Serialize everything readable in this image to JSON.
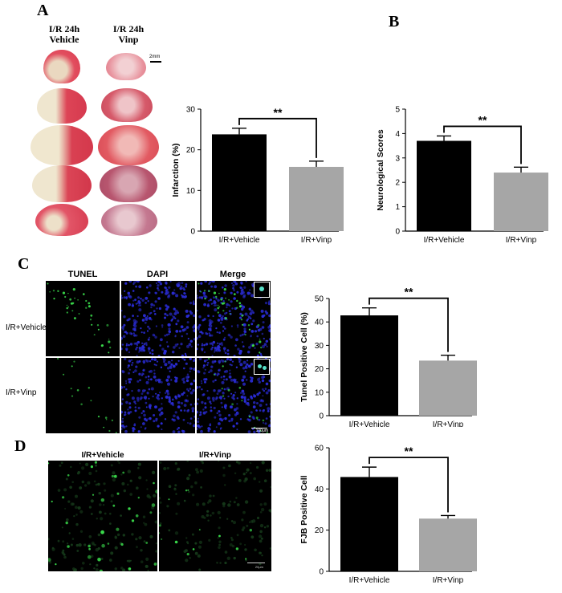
{
  "panels": {
    "a": {
      "letter": "A",
      "col_vehicle": "I/R 24h\nVehicle",
      "col_vinp": "I/R 24h\nVinp",
      "scale_label": "2mm"
    },
    "b": {
      "letter": "B"
    },
    "c": {
      "letter": "C",
      "col_tunel": "TUNEL",
      "col_dapi": "DAPI",
      "col_merge": "Merge",
      "row_vehicle": "I/R+Vehicle",
      "row_vinp": "I/R+Vinp",
      "scale_label": "100μm"
    },
    "d": {
      "letter": "D",
      "col_vehicle": "I/R+Vehicle",
      "col_vinp": "I/R+Vinp",
      "scale_label": "20μm"
    }
  },
  "colors": {
    "vehicle_bar": "#000000",
    "vinp_bar": "#a6a6a6",
    "tunel_green": "#39d84a",
    "dapi_blue": "#2a2cd6",
    "infarct_red": "#d9414f",
    "infarct_pale": "#ece3c9"
  },
  "chart_data": [
    {
      "id": "infarction",
      "type": "bar",
      "categories": [
        "I/R+Vehicle",
        "I/R+Vinp"
      ],
      "values": [
        23.8,
        15.8
      ],
      "errors": [
        1.5,
        1.4
      ],
      "ylabel": "Infarction (%)",
      "ylim": [
        0,
        30
      ],
      "yticks": [
        0,
        10,
        20,
        30
      ],
      "significance": "**",
      "colors": [
        "#000000",
        "#a6a6a6"
      ]
    },
    {
      "id": "neuro",
      "type": "bar",
      "categories": [
        "I/R+Vehicle",
        "I/R+Vinp"
      ],
      "values": [
        3.7,
        2.4
      ],
      "errors": [
        0.2,
        0.22
      ],
      "ylabel": "Neurological Scores",
      "ylim": [
        0,
        5
      ],
      "yticks": [
        0,
        1,
        2,
        3,
        4,
        5
      ],
      "significance": "**",
      "colors": [
        "#000000",
        "#a6a6a6"
      ]
    },
    {
      "id": "tunel",
      "type": "bar",
      "categories": [
        "I/R+Vehicle",
        "I/R+Vinp"
      ],
      "values": [
        42.8,
        23.5
      ],
      "errors": [
        3.2,
        2.3
      ],
      "ylabel": "Tunel Positive Cell (%)",
      "ylim": [
        0,
        50
      ],
      "yticks": [
        0,
        10,
        20,
        30,
        40,
        50
      ],
      "significance": "**",
      "colors": [
        "#000000",
        "#a6a6a6"
      ]
    },
    {
      "id": "fjb",
      "type": "bar",
      "categories": [
        "I/R+Vehicle",
        "I/R+Vinp"
      ],
      "values": [
        45.8,
        25.6
      ],
      "errors": [
        4.8,
        1.5
      ],
      "ylabel": "FJB Positive Cell",
      "ylim": [
        0,
        60
      ],
      "yticks": [
        0,
        20,
        40,
        60
      ],
      "significance": "**",
      "colors": [
        "#000000",
        "#a6a6a6"
      ]
    }
  ]
}
